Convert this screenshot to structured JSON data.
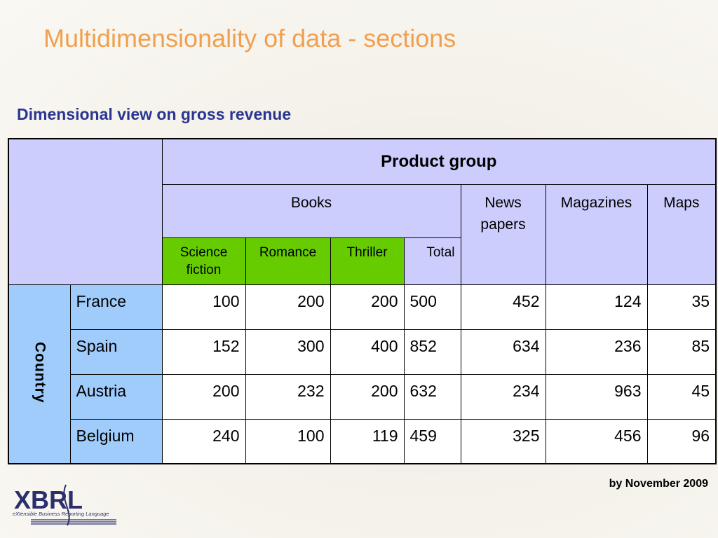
{
  "title": "Multidimensionality of data - sections",
  "subtitle": "Dimensional view on gross revenue",
  "table": {
    "product_group_label": "Product group",
    "country_label": "Country",
    "groups": {
      "books": "Books",
      "news_papers": "News papers",
      "magazines": "Magazines",
      "maps": "Maps"
    },
    "book_subgroups": {
      "science_fiction": "Science fiction",
      "romance": "Romance",
      "thriller": "Thriller",
      "total": "Total"
    },
    "rows": [
      {
        "country": "France",
        "values": [
          "100",
          "200",
          "200",
          "500",
          "452",
          "124",
          "35"
        ]
      },
      {
        "country": "Spain",
        "values": [
          "152",
          "300",
          "400",
          "852",
          "634",
          "236",
          "85"
        ]
      },
      {
        "country": "Austria",
        "values": [
          "200",
          "232",
          "200",
          "632",
          "234",
          "963",
          "45"
        ]
      },
      {
        "country": "Belgium",
        "values": [
          "240",
          "100",
          "119",
          "459",
          "325",
          "456",
          "96"
        ]
      }
    ]
  },
  "footnote": "by November 2009",
  "logo": {
    "wordmark": "XBRL",
    "tagline": "eXtensible Business Reporting Language"
  },
  "colors": {
    "title": "#f0a050",
    "subtitle": "#2a3590",
    "header_lavender": "#cccdfd",
    "subheader_green": "#66cc00",
    "row_header_blue": "#a0ccfc"
  }
}
